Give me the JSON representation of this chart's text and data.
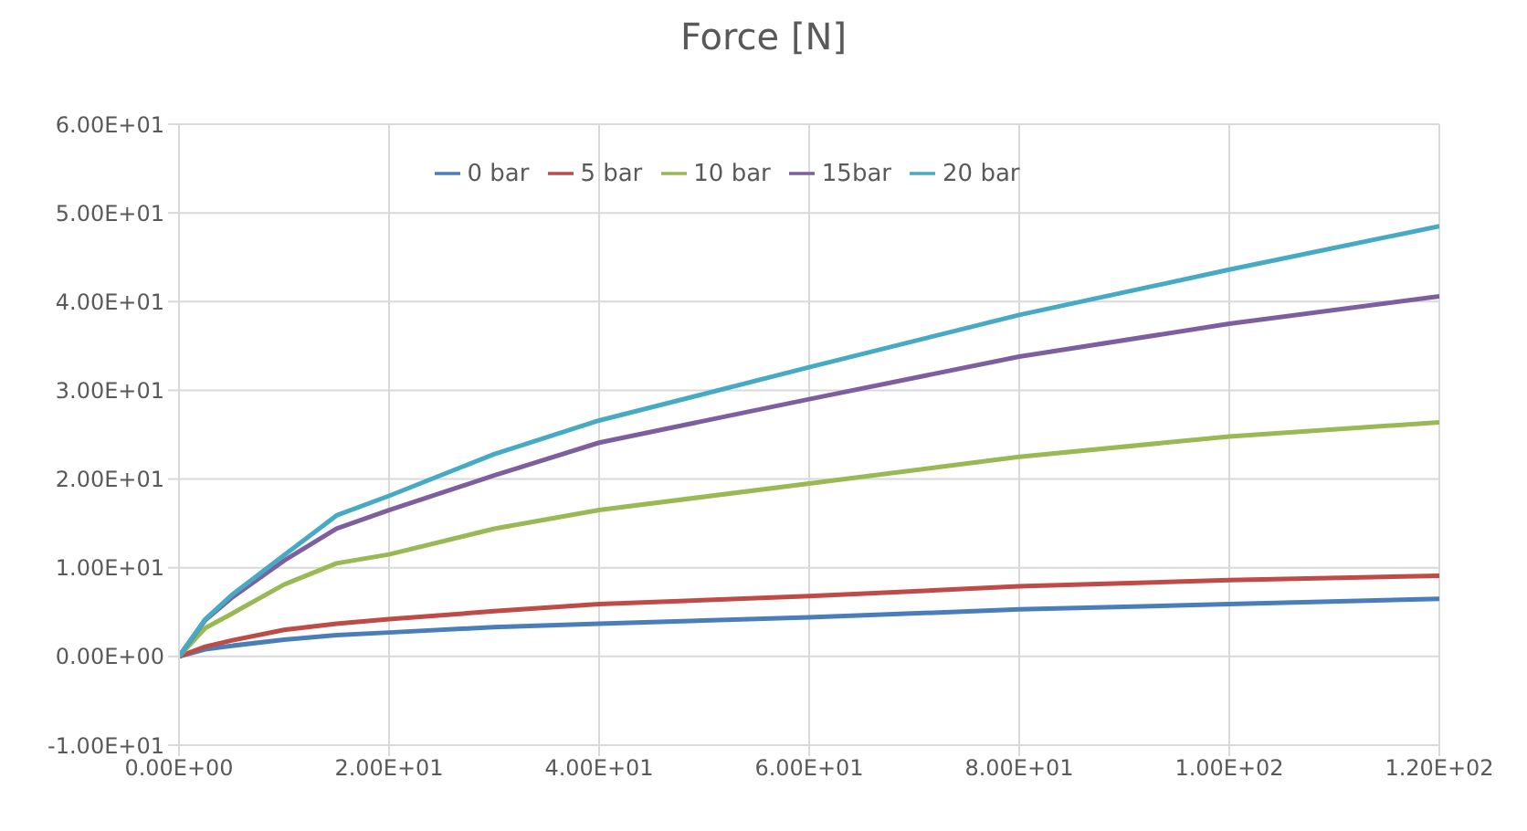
{
  "chart_data": {
    "type": "line",
    "title": "Force [N]",
    "x": [
      0,
      2.5,
      5,
      10,
      15,
      20,
      30,
      40,
      60,
      80,
      100,
      120
    ],
    "series": [
      {
        "name": "0 bar",
        "color": "#4a7ebb",
        "values": [
          0,
          0.8,
          1.2,
          1.9,
          2.4,
          2.7,
          3.3,
          3.7,
          4.4,
          5.3,
          5.9,
          6.5
        ]
      },
      {
        "name": "5 bar",
        "color": "#be4b48",
        "values": [
          0,
          1.1,
          1.8,
          3.0,
          3.7,
          4.2,
          5.1,
          5.9,
          6.8,
          7.9,
          8.6,
          9.1
        ]
      },
      {
        "name": "10 bar",
        "color": "#98b954",
        "values": [
          0,
          3.2,
          4.8,
          8.1,
          10.5,
          11.5,
          14.4,
          16.5,
          19.5,
          22.5,
          24.8,
          26.4
        ]
      },
      {
        "name": "15bar",
        "color": "#7d5fa0",
        "values": [
          0,
          4.1,
          6.6,
          10.8,
          14.4,
          16.5,
          20.4,
          24.1,
          29.0,
          33.8,
          37.5,
          40.6
        ]
      },
      {
        "name": "20 bar",
        "color": "#46aac5",
        "values": [
          0,
          4.2,
          6.9,
          11.4,
          15.9,
          18.1,
          22.8,
          26.6,
          32.6,
          38.5,
          43.6,
          48.5
        ]
      }
    ],
    "xlim": [
      0,
      120
    ],
    "xticks": [
      {
        "value": 0,
        "label": "0.00E+00"
      },
      {
        "value": 20,
        "label": "2.00E+01"
      },
      {
        "value": 40,
        "label": "4.00E+01"
      },
      {
        "value": 60,
        "label": "6.00E+01"
      },
      {
        "value": 80,
        "label": "8.00E+01"
      },
      {
        "value": 100,
        "label": "1.00E+02"
      },
      {
        "value": 120,
        "label": "1.20E+02"
      }
    ],
    "ylim": [
      -10,
      60
    ],
    "yticks": [
      {
        "value": -10,
        "label": "-1.00E+01"
      },
      {
        "value": 0,
        "label": "0.00E+00"
      },
      {
        "value": 10,
        "label": "1.00E+01"
      },
      {
        "value": 20,
        "label": "2.00E+01"
      },
      {
        "value": 30,
        "label": "3.00E+01"
      },
      {
        "value": 40,
        "label": "4.00E+01"
      },
      {
        "value": 50,
        "label": "5.00E+01"
      },
      {
        "value": 60,
        "label": "6.00E+01"
      }
    ],
    "grid": true,
    "legend": "top",
    "marker": "none",
    "line_style": "solid"
  }
}
